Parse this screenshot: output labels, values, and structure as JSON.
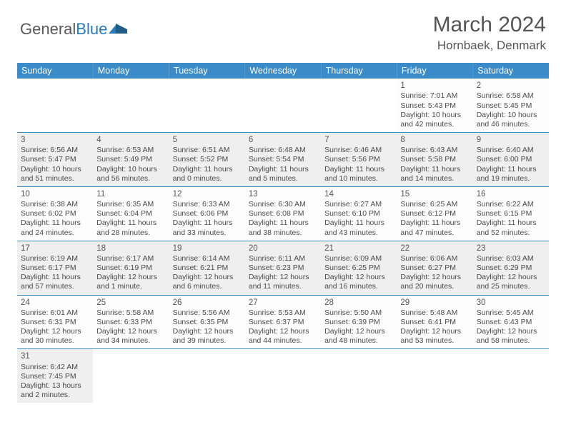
{
  "logo": {
    "text_a": "General",
    "text_b": "Blue"
  },
  "title": "March 2024",
  "location": "Hornbaek, Denmark",
  "dayHeaders": [
    "Sunday",
    "Monday",
    "Tuesday",
    "Wednesday",
    "Thursday",
    "Friday",
    "Saturday"
  ],
  "colors": {
    "header_bg": "#3b8bc8",
    "header_text": "#ffffff",
    "row_alt": "#efefef",
    "border": "#3b8bc8",
    "text": "#4a4a4a"
  },
  "weeks": [
    [
      null,
      null,
      null,
      null,
      null,
      {
        "n": "1",
        "sr": "7:01 AM",
        "ss": "5:43 PM",
        "dl": "10 hours and 42 minutes."
      },
      {
        "n": "2",
        "sr": "6:58 AM",
        "ss": "5:45 PM",
        "dl": "10 hours and 46 minutes."
      }
    ],
    [
      {
        "n": "3",
        "sr": "6:56 AM",
        "ss": "5:47 PM",
        "dl": "10 hours and 51 minutes."
      },
      {
        "n": "4",
        "sr": "6:53 AM",
        "ss": "5:49 PM",
        "dl": "10 hours and 56 minutes."
      },
      {
        "n": "5",
        "sr": "6:51 AM",
        "ss": "5:52 PM",
        "dl": "11 hours and 0 minutes."
      },
      {
        "n": "6",
        "sr": "6:48 AM",
        "ss": "5:54 PM",
        "dl": "11 hours and 5 minutes."
      },
      {
        "n": "7",
        "sr": "6:46 AM",
        "ss": "5:56 PM",
        "dl": "11 hours and 10 minutes."
      },
      {
        "n": "8",
        "sr": "6:43 AM",
        "ss": "5:58 PM",
        "dl": "11 hours and 14 minutes."
      },
      {
        "n": "9",
        "sr": "6:40 AM",
        "ss": "6:00 PM",
        "dl": "11 hours and 19 minutes."
      }
    ],
    [
      {
        "n": "10",
        "sr": "6:38 AM",
        "ss": "6:02 PM",
        "dl": "11 hours and 24 minutes."
      },
      {
        "n": "11",
        "sr": "6:35 AM",
        "ss": "6:04 PM",
        "dl": "11 hours and 28 minutes."
      },
      {
        "n": "12",
        "sr": "6:33 AM",
        "ss": "6:06 PM",
        "dl": "11 hours and 33 minutes."
      },
      {
        "n": "13",
        "sr": "6:30 AM",
        "ss": "6:08 PM",
        "dl": "11 hours and 38 minutes."
      },
      {
        "n": "14",
        "sr": "6:27 AM",
        "ss": "6:10 PM",
        "dl": "11 hours and 43 minutes."
      },
      {
        "n": "15",
        "sr": "6:25 AM",
        "ss": "6:12 PM",
        "dl": "11 hours and 47 minutes."
      },
      {
        "n": "16",
        "sr": "6:22 AM",
        "ss": "6:15 PM",
        "dl": "11 hours and 52 minutes."
      }
    ],
    [
      {
        "n": "17",
        "sr": "6:19 AM",
        "ss": "6:17 PM",
        "dl": "11 hours and 57 minutes."
      },
      {
        "n": "18",
        "sr": "6:17 AM",
        "ss": "6:19 PM",
        "dl": "12 hours and 1 minute."
      },
      {
        "n": "19",
        "sr": "6:14 AM",
        "ss": "6:21 PM",
        "dl": "12 hours and 6 minutes."
      },
      {
        "n": "20",
        "sr": "6:11 AM",
        "ss": "6:23 PM",
        "dl": "12 hours and 11 minutes."
      },
      {
        "n": "21",
        "sr": "6:09 AM",
        "ss": "6:25 PM",
        "dl": "12 hours and 16 minutes."
      },
      {
        "n": "22",
        "sr": "6:06 AM",
        "ss": "6:27 PM",
        "dl": "12 hours and 20 minutes."
      },
      {
        "n": "23",
        "sr": "6:03 AM",
        "ss": "6:29 PM",
        "dl": "12 hours and 25 minutes."
      }
    ],
    [
      {
        "n": "24",
        "sr": "6:01 AM",
        "ss": "6:31 PM",
        "dl": "12 hours and 30 minutes."
      },
      {
        "n": "25",
        "sr": "5:58 AM",
        "ss": "6:33 PM",
        "dl": "12 hours and 34 minutes."
      },
      {
        "n": "26",
        "sr": "5:56 AM",
        "ss": "6:35 PM",
        "dl": "12 hours and 39 minutes."
      },
      {
        "n": "27",
        "sr": "5:53 AM",
        "ss": "6:37 PM",
        "dl": "12 hours and 44 minutes."
      },
      {
        "n": "28",
        "sr": "5:50 AM",
        "ss": "6:39 PM",
        "dl": "12 hours and 48 minutes."
      },
      {
        "n": "29",
        "sr": "5:48 AM",
        "ss": "6:41 PM",
        "dl": "12 hours and 53 minutes."
      },
      {
        "n": "30",
        "sr": "5:45 AM",
        "ss": "6:43 PM",
        "dl": "12 hours and 58 minutes."
      }
    ],
    [
      {
        "n": "31",
        "sr": "6:42 AM",
        "ss": "7:45 PM",
        "dl": "13 hours and 2 minutes."
      },
      null,
      null,
      null,
      null,
      null,
      null
    ]
  ],
  "labels": {
    "sunrise": "Sunrise: ",
    "sunset": "Sunset: ",
    "daylight": "Daylight: "
  }
}
